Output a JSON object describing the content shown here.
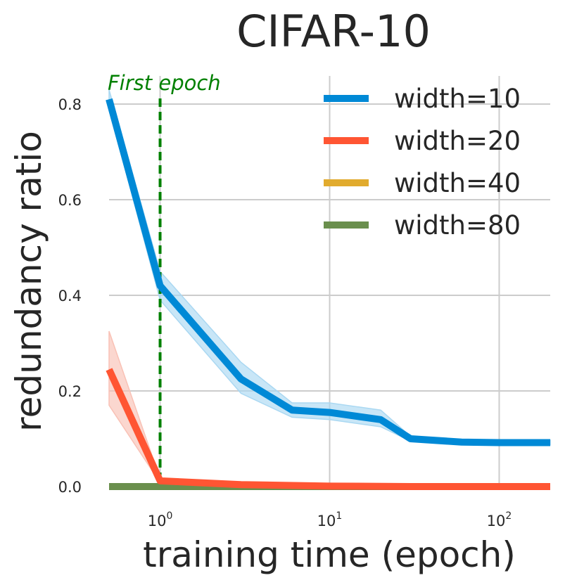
{
  "chart_data": {
    "type": "line",
    "title": "CIFAR-10",
    "xlabel": "training time (epoch)",
    "ylabel": "redundancy ratio",
    "x_scale": "log",
    "xlim": [
      0.5,
      200
    ],
    "ylim": [
      0.0,
      0.8
    ],
    "x_ticks": [
      {
        "value": 1,
        "base": "10",
        "exp": "0"
      },
      {
        "value": 10,
        "base": "10",
        "exp": "1"
      },
      {
        "value": 100,
        "base": "10",
        "exp": "2"
      }
    ],
    "y_ticks": [
      "0.0",
      "0.2",
      "0.4",
      "0.6",
      "0.8"
    ],
    "grid": true,
    "legend_position": "top-right",
    "annotation": {
      "text": "First epoch",
      "x": 1,
      "color": "#008000"
    },
    "series": [
      {
        "name": "width=10",
        "color": "#0089d6",
        "band_color": "#aad8f2",
        "x": [
          0.5,
          1,
          3,
          6,
          10,
          20,
          30,
          60,
          100,
          200
        ],
        "y": [
          0.81,
          0.42,
          0.225,
          0.16,
          0.155,
          0.14,
          0.1,
          0.093,
          0.092,
          0.092
        ],
        "y_lower": [
          0.79,
          0.39,
          0.195,
          0.145,
          0.14,
          0.125,
          0.095,
          0.088,
          0.087,
          0.087
        ],
        "y_upper": [
          0.83,
          0.45,
          0.26,
          0.175,
          0.175,
          0.16,
          0.105,
          0.098,
          0.097,
          0.097
        ]
      },
      {
        "name": "width=20",
        "color": "#ff5533",
        "band_color": "#f9c1b5",
        "x": [
          0.5,
          1,
          3,
          10,
          30,
          100,
          200
        ],
        "y": [
          0.245,
          0.012,
          0.004,
          0.001,
          0.0,
          0.0,
          0.0
        ],
        "y_lower": [
          0.17,
          0.008,
          0.002,
          0.0,
          0.0,
          0.0,
          0.0
        ],
        "y_upper": [
          0.325,
          0.016,
          0.006,
          0.002,
          0.0,
          0.0,
          0.0
        ]
      },
      {
        "name": "width=40",
        "color": "#e1ab2e",
        "x": [
          0.5,
          200
        ],
        "y": [
          0.0,
          0.0
        ]
      },
      {
        "name": "width=80",
        "color": "#6a8f4d",
        "x": [
          0.5,
          200
        ],
        "y": [
          0.0,
          0.0
        ]
      }
    ]
  }
}
